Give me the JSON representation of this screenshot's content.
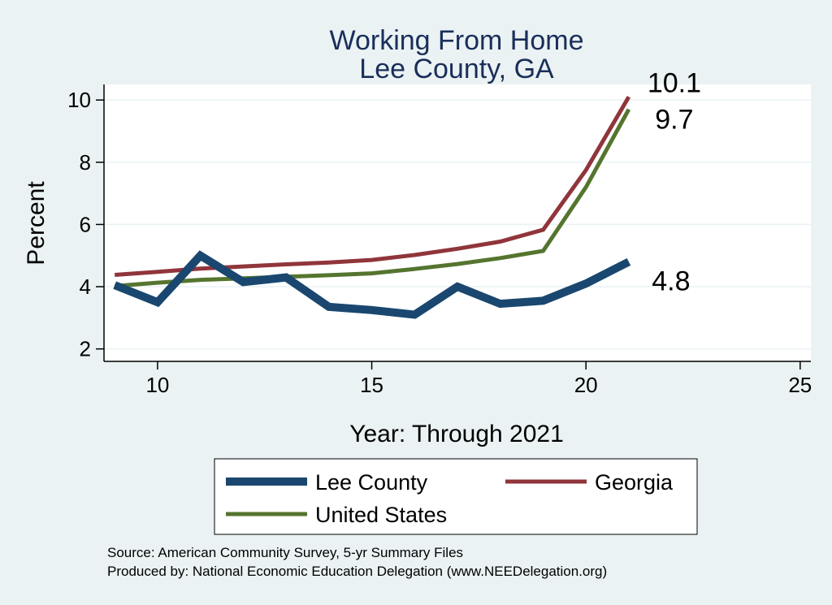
{
  "chart_data": {
    "type": "line",
    "title": [
      "Working From Home",
      "Lee County, GA"
    ],
    "xlabel": "Year: Through 2021",
    "ylabel": "Percent",
    "xlim": [
      8.75,
      25.25
    ],
    "ylim": [
      1.6,
      10.5
    ],
    "xticks": [
      10,
      15,
      20,
      25
    ],
    "yticks": [
      2,
      4,
      6,
      8,
      10
    ],
    "grid": "horizontal",
    "legend_position": "bottom",
    "series": [
      {
        "name": "Lee County",
        "color": "#1a476f",
        "width": 10,
        "x": [
          9,
          10,
          11,
          12,
          13,
          14,
          15,
          16,
          17,
          18,
          19,
          20,
          21
        ],
        "y": [
          4.05,
          3.5,
          5.0,
          4.15,
          4.3,
          3.35,
          3.25,
          3.1,
          4.0,
          3.45,
          3.55,
          4.1,
          4.8
        ],
        "end_label": "4.8"
      },
      {
        "name": "Georgia",
        "color": "#90353b",
        "width": 5,
        "x": [
          9,
          10,
          11,
          12,
          13,
          14,
          15,
          16,
          17,
          18,
          19,
          20,
          21
        ],
        "y": [
          4.38,
          4.48,
          4.58,
          4.65,
          4.72,
          4.78,
          4.86,
          5.02,
          5.22,
          5.45,
          5.83,
          7.75,
          10.1
        ],
        "end_label": "10.1"
      },
      {
        "name": "United States",
        "color": "#55752f",
        "width": 5,
        "x": [
          9,
          10,
          11,
          12,
          13,
          14,
          15,
          16,
          17,
          18,
          19,
          20,
          21
        ],
        "y": [
          4.02,
          4.13,
          4.22,
          4.27,
          4.32,
          4.37,
          4.43,
          4.57,
          4.73,
          4.92,
          5.15,
          7.2,
          9.7
        ],
        "end_label": "9.7"
      }
    ]
  },
  "source_note": "Source: American Community Survey, 5-yr Summary Files",
  "produced_note": "Produced by: National Economic Education Delegation (www.NEEDelegation.org)"
}
